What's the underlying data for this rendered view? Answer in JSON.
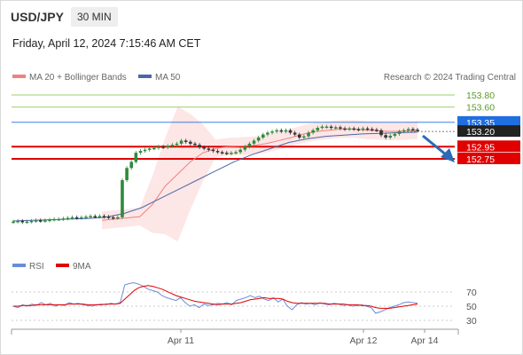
{
  "header": {
    "symbol": "USD/JPY",
    "timeframe": "30 MIN",
    "datetime": "Friday, April 12, 2024 7:15:46 AM CET"
  },
  "legend": {
    "ma20_label": "MA 20 + Bollinger Bands",
    "ma50_label": "MA 50",
    "copyright": "Research © 2024 Trading Central",
    "rsi_label": "RSI",
    "rsi_ma_label": "9MA"
  },
  "colors": {
    "candle_up": "#2e8b3a",
    "candle_down": "#333333",
    "ma20": "#f08080",
    "ma50": "#4a67a8",
    "bollinger_fill": "#fde2e2",
    "support": "#e00000",
    "pivot_badge": "#1f6fe0",
    "resistance": "#7cbf3a",
    "rsi": "#6c8cd8",
    "rsi_ma": "#e00000",
    "arrow": "#2a6bb5"
  },
  "chart_data": {
    "type": "candlestick",
    "instrument": "USD/JPY",
    "interval": "30 MIN",
    "x_ticks": [
      "Apr 11",
      "Apr 12",
      "Apr 14"
    ],
    "price_levels": {
      "resistance": [
        153.8,
        153.6
      ],
      "pivot": 153.35,
      "last": 153.2,
      "support": [
        152.95,
        152.75
      ]
    },
    "level_labels": [
      "153.80",
      "153.60",
      "153.35",
      "153.20",
      "152.95",
      "152.75"
    ],
    "candles_close": [
      151.72,
      151.73,
      151.71,
      151.72,
      151.73,
      151.74,
      151.73,
      151.74,
      151.75,
      151.76,
      151.76,
      151.77,
      151.78,
      151.79,
      151.78,
      151.79,
      151.8,
      151.81,
      151.8,
      151.81,
      151.8,
      151.79,
      151.78,
      151.79,
      152.4,
      152.6,
      152.7,
      152.85,
      152.88,
      152.9,
      152.92,
      152.93,
      152.95,
      152.94,
      152.96,
      152.98,
      153.0,
      153.05,
      153.03,
      153.0,
      152.98,
      152.94,
      152.92,
      152.9,
      152.88,
      152.86,
      152.85,
      152.84,
      152.85,
      152.86,
      152.9,
      152.95,
      153.0,
      153.05,
      153.1,
      153.15,
      153.18,
      153.2,
      153.22,
      153.2,
      153.22,
      153.18,
      153.15,
      153.1,
      153.12,
      153.18,
      153.22,
      153.26,
      153.28,
      153.28,
      153.26,
      153.27,
      153.25,
      153.24,
      153.25,
      153.24,
      153.23,
      153.25,
      153.24,
      153.23,
      153.22,
      153.14,
      153.1,
      153.13,
      153.16,
      153.2,
      153.22,
      153.24,
      153.23,
      153.22
    ],
    "ma20": [
      151.74,
      151.76,
      151.78,
      151.8,
      152.0,
      152.3,
      152.5,
      152.7,
      152.85,
      152.92,
      152.95,
      152.96,
      152.97,
      153.0,
      153.05,
      153.1,
      153.16,
      153.2,
      153.22,
      153.24,
      153.24,
      153.22,
      153.21,
      153.2,
      153.21,
      153.22
    ],
    "ma50": [
      151.73,
      151.74,
      151.75,
      151.76,
      151.77,
      151.79,
      151.85,
      151.95,
      152.1,
      152.25,
      152.4,
      152.55,
      152.7,
      152.82,
      152.92,
      153.02,
      153.08,
      153.12,
      153.14,
      153.16,
      153.17,
      153.18,
      153.19
    ],
    "rsi": {
      "levels": [
        70,
        50,
        30
      ],
      "level_labels": [
        "70",
        "50",
        "30"
      ],
      "rsi_values": [
        50,
        48,
        52,
        50,
        53,
        51,
        55,
        52,
        54,
        50,
        52,
        51,
        55,
        53,
        54,
        52,
        51,
        50,
        52,
        53,
        52,
        54,
        53,
        55,
        80,
        82,
        83,
        81,
        78,
        74,
        72,
        70,
        65,
        62,
        60,
        58,
        62,
        55,
        50,
        52,
        48,
        53,
        51,
        52,
        54,
        53,
        55,
        52,
        58,
        60,
        62,
        65,
        62,
        64,
        60,
        58,
        62,
        56,
        60,
        50,
        45,
        52,
        55,
        53,
        54,
        52,
        55,
        53,
        52,
        54,
        53,
        51,
        52,
        50,
        51,
        52,
        50,
        48,
        40,
        42,
        45,
        48,
        50,
        52,
        55,
        56,
        55,
        54
      ],
      "ma_values": [
        50,
        50,
        51,
        51,
        51,
        52,
        52,
        52,
        52,
        52,
        52,
        52,
        53,
        53,
        53,
        53,
        52,
        52,
        52,
        52,
        53,
        53,
        53,
        54,
        60,
        66,
        72,
        76,
        78,
        79,
        78,
        76,
        74,
        71,
        68,
        65,
        63,
        61,
        59,
        57,
        56,
        55,
        54,
        53,
        52,
        53,
        53,
        53,
        54,
        55,
        57,
        59,
        60,
        61,
        62,
        61,
        61,
        61,
        60,
        57,
        55,
        54,
        54,
        54,
        54,
        54,
        54,
        54,
        53,
        53,
        53,
        53,
        52,
        52,
        52,
        51,
        51,
        50,
        48,
        47,
        47,
        47,
        48,
        49,
        50,
        51,
        52,
        53
      ]
    }
  }
}
